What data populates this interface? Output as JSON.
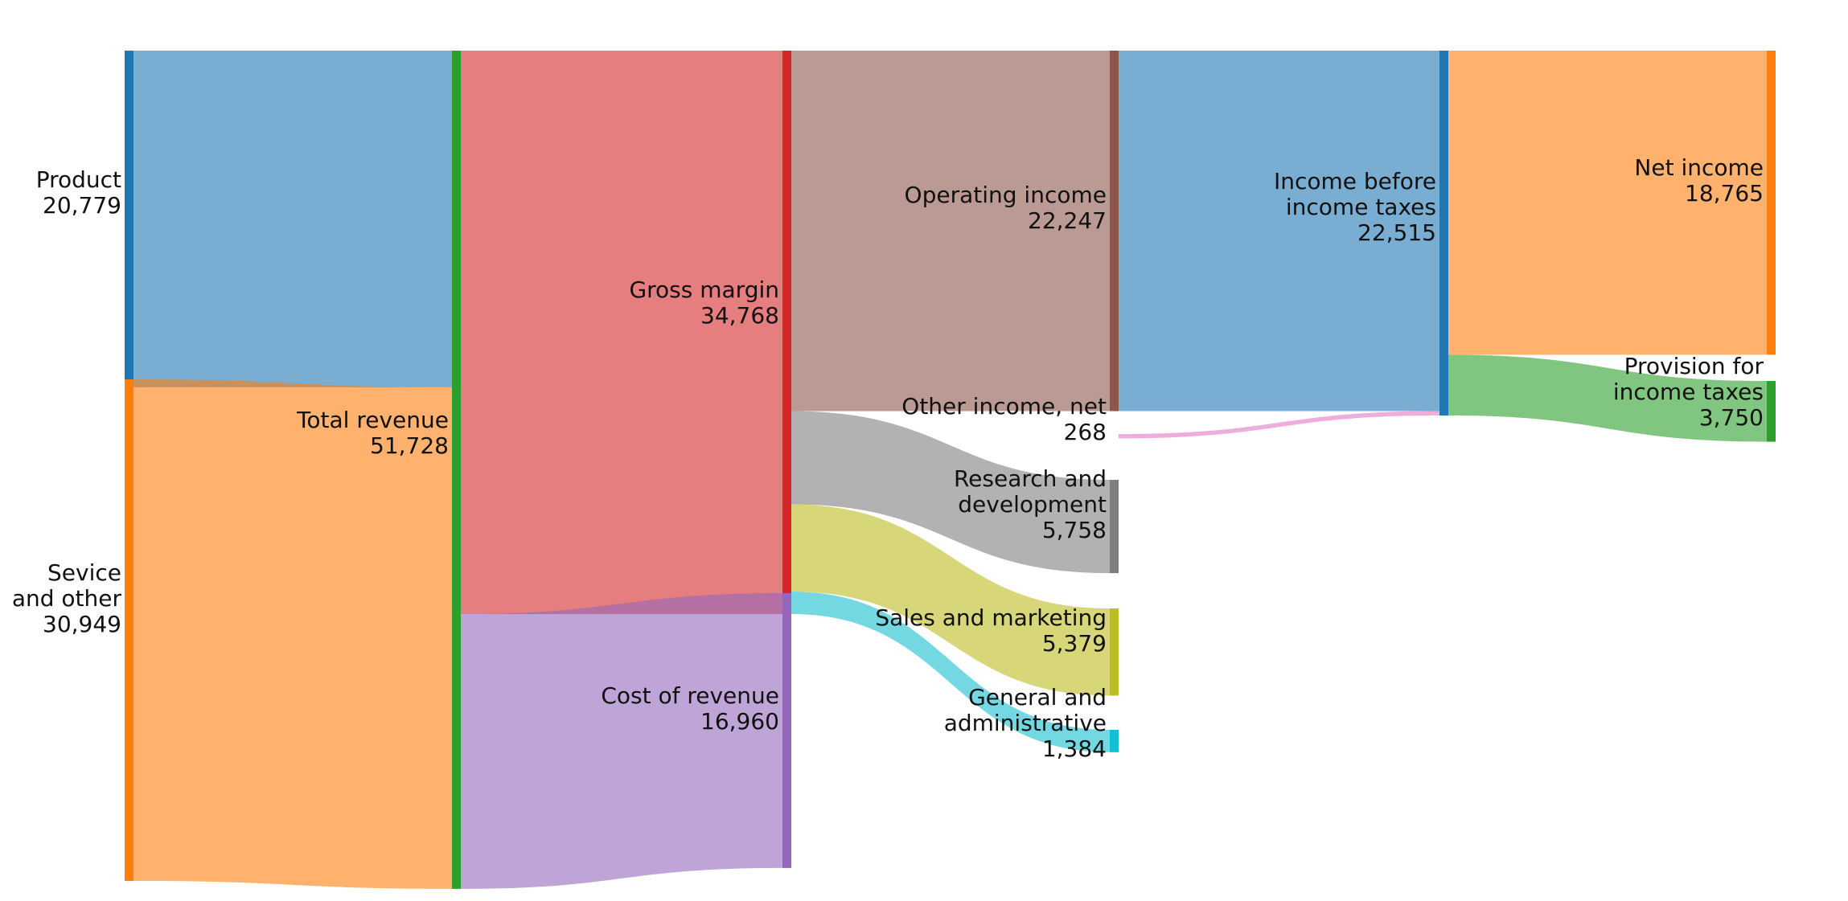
{
  "chart_data": {
    "type": "sankey",
    "nodes": [
      {
        "id": "product",
        "label": [
          "Product",
          "20,779"
        ],
        "value": 20779,
        "color": "#1f77b4"
      },
      {
        "id": "service",
        "label": [
          "Sevice",
          "and other",
          "30,949"
        ],
        "value": 30949,
        "color": "#ff7f0e"
      },
      {
        "id": "total_revenue",
        "label": [
          "Total revenue",
          "51,728"
        ],
        "value": 51728,
        "color": "#2ca02c"
      },
      {
        "id": "gross_margin",
        "label": [
          "Gross margin",
          "34,768"
        ],
        "value": 34768,
        "color": "#d62728"
      },
      {
        "id": "cost_of_revenue",
        "label": [
          "Cost of revenue",
          "16,960"
        ],
        "value": 16960,
        "color": "#9467bd"
      },
      {
        "id": "operating_income",
        "label": [
          "Operating income",
          "22,247"
        ],
        "value": 22247,
        "color": "#8c564b"
      },
      {
        "id": "other_income",
        "label": [
          "Other income, net",
          "268"
        ],
        "value": 268,
        "color": "#e377c2"
      },
      {
        "id": "research_development",
        "label": [
          "Research and",
          "development",
          "5,758"
        ],
        "value": 5758,
        "color": "#7f7f7f"
      },
      {
        "id": "sales_marketing",
        "label": [
          "Sales and marketing",
          "5,379"
        ],
        "value": 5379,
        "color": "#bcbd22"
      },
      {
        "id": "general_admin",
        "label": [
          "General and",
          "administrative",
          "1,384"
        ],
        "value": 1384,
        "color": "#17becf"
      },
      {
        "id": "income_before_taxes",
        "label": [
          "Income before",
          "income taxes",
          "22,515"
        ],
        "value": 22515,
        "color": "#1f77b4"
      },
      {
        "id": "net_income",
        "label": [
          "Net income",
          "18,765"
        ],
        "value": 18765,
        "color": "#ff7f0e"
      },
      {
        "id": "provision_taxes",
        "label": [
          "Provision for",
          "income taxes",
          "3,750"
        ],
        "value": 3750,
        "color": "#2ca02c"
      }
    ],
    "flows": [
      {
        "source": "product",
        "target": "total_revenue",
        "value": 20779
      },
      {
        "source": "service",
        "target": "total_revenue",
        "value": 30949
      },
      {
        "source": "total_revenue",
        "target": "gross_margin",
        "value": 34768
      },
      {
        "source": "total_revenue",
        "target": "cost_of_revenue",
        "value": 16960
      },
      {
        "source": "gross_margin",
        "target": "operating_income",
        "value": 22247
      },
      {
        "source": "gross_margin",
        "target": "research_development",
        "value": 5758
      },
      {
        "source": "gross_margin",
        "target": "sales_marketing",
        "value": 5379
      },
      {
        "source": "gross_margin",
        "target": "general_admin",
        "value": 1384
      },
      {
        "source": "operating_income",
        "target": "income_before_taxes",
        "value": 22247
      },
      {
        "source": "other_income",
        "target": "income_before_taxes",
        "value": 268
      },
      {
        "source": "income_before_taxes",
        "target": "net_income",
        "value": 18765
      },
      {
        "source": "income_before_taxes",
        "target": "provision_taxes",
        "value": 3750
      }
    ]
  }
}
